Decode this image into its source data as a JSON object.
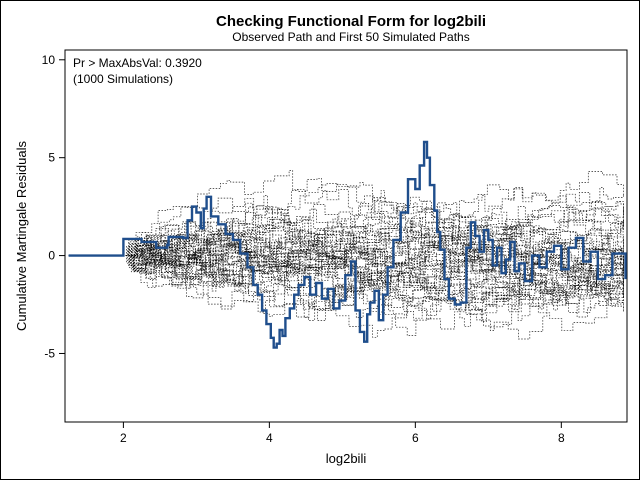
{
  "chart_data": {
    "type": "line",
    "title": "Checking Functional Form for log2bili",
    "subtitle": "Observed Path and First 50 Simulated Paths",
    "xlabel": "log2bili",
    "ylabel": "Cumulative Martingale Residuals",
    "xlim": [
      1.2,
      8.9
    ],
    "ylim": [
      -8.5,
      10.5
    ],
    "x_ticks": [
      2,
      4,
      6,
      8
    ],
    "y_ticks": [
      10,
      5,
      0,
      -5
    ],
    "annotation": [
      "Pr > MaxAbsVal: 0.3920",
      "(1000 Simulations)"
    ],
    "legend": "none",
    "grid": false,
    "series": [
      {
        "role": "observed",
        "color": "#1f4e8c",
        "style": "solid",
        "x": [
          1.25,
          2.0,
          2.25,
          2.45,
          2.6,
          2.62,
          2.82,
          2.88,
          2.94,
          3.0,
          3.06,
          3.1,
          3.14,
          3.2,
          3.3,
          3.4,
          3.5,
          3.6,
          3.7,
          3.78,
          3.84,
          3.9,
          3.96,
          4.02,
          4.06,
          4.1,
          4.14,
          4.18,
          4.22,
          4.28,
          4.34,
          4.4,
          4.48,
          4.56,
          4.64,
          4.72,
          4.8,
          4.88,
          4.96,
          5.04,
          5.12,
          5.18,
          5.24,
          5.3,
          5.34,
          5.38,
          5.44,
          5.5,
          5.56,
          5.62,
          5.7,
          5.8,
          5.9,
          6.0,
          6.06,
          6.12,
          6.16,
          6.2,
          6.26,
          6.3,
          6.34,
          6.4,
          6.46,
          6.54,
          6.62,
          6.7,
          6.76,
          6.82,
          6.88,
          6.94,
          7.0,
          7.06,
          7.12,
          7.18,
          7.24,
          7.3,
          7.36,
          7.42,
          7.5,
          7.6,
          7.7,
          7.8,
          7.9,
          8.0,
          8.1,
          8.2,
          8.3,
          8.4,
          8.5,
          8.6,
          8.7,
          8.88
        ],
        "y": [
          0.0,
          0.85,
          0.7,
          0.4,
          0.55,
          0.95,
          0.9,
          1.8,
          2.5,
          2.2,
          1.4,
          2.4,
          3.0,
          2.0,
          1.6,
          1.1,
          0.8,
          0.1,
          -0.6,
          -1.5,
          -2.0,
          -2.8,
          -3.5,
          -4.2,
          -4.7,
          -4.5,
          -3.8,
          -4.1,
          -3.2,
          -2.7,
          -2.0,
          -1.5,
          -1.1,
          -2.0,
          -1.4,
          -2.2,
          -1.7,
          -2.7,
          -2.3,
          -1.0,
          -0.3,
          -2.8,
          -3.9,
          -4.4,
          -3.0,
          -2.4,
          -1.8,
          -3.3,
          -2.0,
          -0.6,
          0.8,
          2.2,
          3.9,
          3.4,
          4.6,
          5.8,
          5.0,
          3.6,
          2.3,
          1.2,
          0.3,
          -1.2,
          -2.2,
          -2.5,
          -2.4,
          0.4,
          1.7,
          1.0,
          0.2,
          1.3,
          0.8,
          -0.5,
          0.4,
          -0.9,
          -0.2,
          0.7,
          -0.8,
          -0.4,
          -1.3,
          0.0,
          -0.6,
          0.2,
          0.5,
          -0.7,
          0.4,
          0.9,
          -0.3,
          0.2,
          -1.2,
          -1.0,
          0.1,
          -1.2
        ]
      }
    ],
    "simulated": {
      "count": 50,
      "color": "#000000",
      "style": "dotted"
    }
  }
}
